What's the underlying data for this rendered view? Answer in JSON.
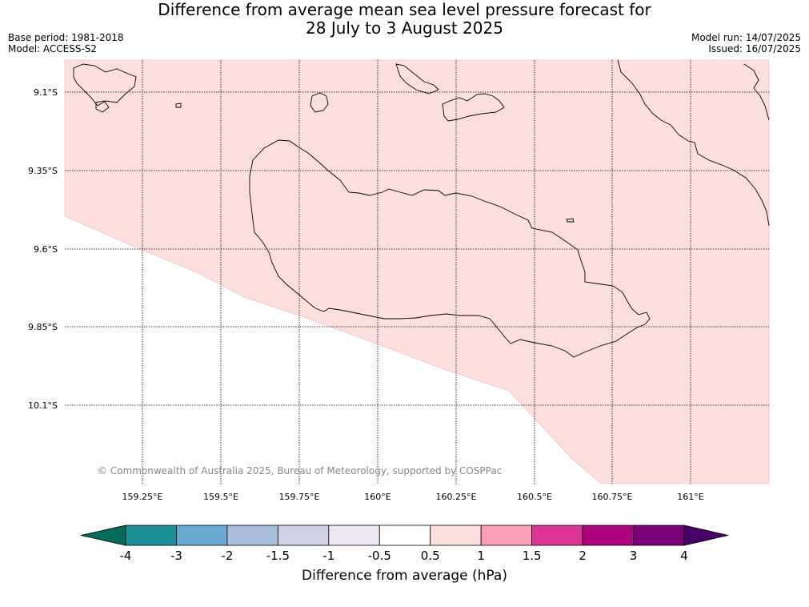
{
  "header": {
    "title_line1": "Difference from average mean sea level pressure forecast for",
    "title_line2": "28 July to 3 August 2025",
    "base_period": "Base period: 1981-2018",
    "model": "Model: ACCESS-S2",
    "model_run": "Model run: 14/07/2025",
    "issued": "Issued: 16/07/2025"
  },
  "map": {
    "lon_labels": [
      "159.25°E",
      "159.5°E",
      "159.75°E",
      "160°E",
      "160.25°E",
      "160.5°E",
      "160.75°E",
      "161°E"
    ],
    "lat_labels": [
      "9.1°S",
      "9.35°S",
      "9.6°S",
      "9.85°S",
      "10.1°S"
    ],
    "copyright": "© Commonwealth of Australia 2025, Bureau of Meteorology, supported by COSPPac",
    "fill_color": "#fde0dd",
    "fill_category": "0.5 to 1"
  },
  "colorbar": {
    "label": "Difference from average (hPa)",
    "ticks": [
      "-4",
      "-3",
      "-2",
      "-1.5",
      "-1",
      "-0.5",
      "0.5",
      "1",
      "1.5",
      "2",
      "3",
      "4"
    ],
    "colors": [
      "#016c59",
      "#1c9099",
      "#67a9cf",
      "#a6bddb",
      "#d0d1e6",
      "#ece7f2",
      "#ffffff",
      "#fde0dd",
      "#fa9fb5",
      "#dd3497",
      "#ae017e",
      "#7a0177",
      "#49006a"
    ]
  }
}
